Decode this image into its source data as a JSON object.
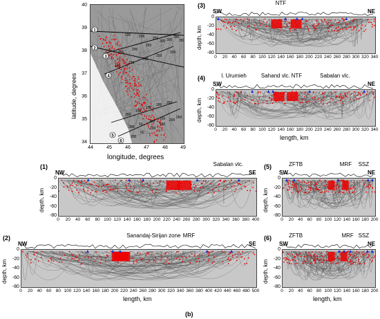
{
  "figure_label": "(b)",
  "map": {
    "xlabel": "longitude, degrees",
    "ylabel": "latitude, degrees",
    "xticks": [
      "44",
      "45",
      "46",
      "47",
      "48",
      "49"
    ],
    "yticks": [
      "40",
      "39",
      "38",
      "37",
      "36",
      "35",
      "34"
    ],
    "profile_markers": [
      "1",
      "2",
      "3",
      "4",
      "5",
      "6"
    ],
    "contour_labels": [
      "150",
      "200",
      "250",
      "300",
      "350",
      "150",
      "200",
      "250",
      "300",
      "350",
      "100",
      "150",
      "200",
      "250",
      "300",
      "350",
      "100",
      "150",
      "200",
      "250",
      "300",
      "50",
      "100",
      "150",
      "200",
      "50",
      "100",
      "150",
      "200",
      "250"
    ]
  },
  "profiles": [
    {
      "id": "(3)",
      "left": "SW",
      "right": "NE",
      "annotations": [
        "NTF"
      ],
      "xticks": [
        "0",
        "20",
        "40",
        "60",
        "80",
        "100",
        "120",
        "140",
        "160",
        "180",
        "200",
        "220",
        "240",
        "260",
        "280",
        "300",
        "320",
        "340"
      ],
      "yticks": [
        "0",
        "-20",
        "-40",
        "-60",
        "-80"
      ],
      "ylabel": "depth, km",
      "xlabel": ""
    },
    {
      "id": "(4)",
      "left": "SW",
      "right": "NE",
      "annotations": [
        "l. Urumieh",
        "Sahand vlc.",
        "NTF",
        "Sabalan vlc."
      ],
      "xticks": [
        "0",
        "20",
        "40",
        "60",
        "80",
        "100",
        "120",
        "140",
        "160",
        "180",
        "200",
        "220",
        "240",
        "260",
        "280",
        "300",
        "320",
        "340"
      ],
      "yticks": [
        "0",
        "-20",
        "-40",
        "-60",
        "-80"
      ],
      "ylabel": "depth, km",
      "xlabel": "length, km"
    },
    {
      "id": "(1)",
      "left": "NW",
      "right": "SE",
      "annotations": [
        "Sabalan vlc."
      ],
      "xticks": [
        "0",
        "20",
        "40",
        "60",
        "80",
        "100",
        "120",
        "140",
        "160",
        "180",
        "200",
        "220",
        "240",
        "260",
        "280",
        "300",
        "320",
        "340",
        "360",
        "380",
        "400"
      ],
      "yticks": [
        "0",
        "-20",
        "-40",
        "-60",
        "-80"
      ],
      "ylabel": "depth, km",
      "xlabel": ""
    },
    {
      "id": "(5)",
      "left": "SW",
      "right": "NE",
      "annotations": [
        "ZFTB",
        "MRF",
        "SSZ"
      ],
      "xticks": [
        "0",
        "20",
        "40",
        "60",
        "80",
        "100",
        "120",
        "140",
        "160",
        "180",
        "200"
      ],
      "yticks": [
        "0",
        "-20",
        "-40",
        "-60",
        "-80"
      ],
      "ylabel": "depth, km",
      "xlabel": ""
    },
    {
      "id": "(2)",
      "left": "NW",
      "right": "SE",
      "annotations": [
        "Sanandaj-Sirijan zone",
        "MRF"
      ],
      "xticks": [
        "0",
        "20",
        "40",
        "60",
        "80",
        "100",
        "120",
        "140",
        "160",
        "180",
        "200",
        "220",
        "240",
        "260",
        "280",
        "300",
        "320",
        "340",
        "360",
        "380",
        "400",
        "420",
        "440",
        "460",
        "480",
        "500"
      ],
      "yticks": [
        "0",
        "-20",
        "-40",
        "-60",
        "-80"
      ],
      "ylabel": "depth, km",
      "xlabel": "length, km"
    },
    {
      "id": "(6)",
      "left": "SW",
      "right": "NE",
      "annotations": [
        "ZFTB",
        "MRF",
        "SSZ"
      ],
      "xticks": [
        "0",
        "20",
        "40",
        "60",
        "80",
        "100",
        "120",
        "140",
        "160",
        "180",
        "200"
      ],
      "yticks": [
        "0",
        "-20",
        "-40",
        "-60",
        "-80"
      ],
      "ylabel": "depth, km",
      "xlabel": "length, km"
    }
  ]
}
